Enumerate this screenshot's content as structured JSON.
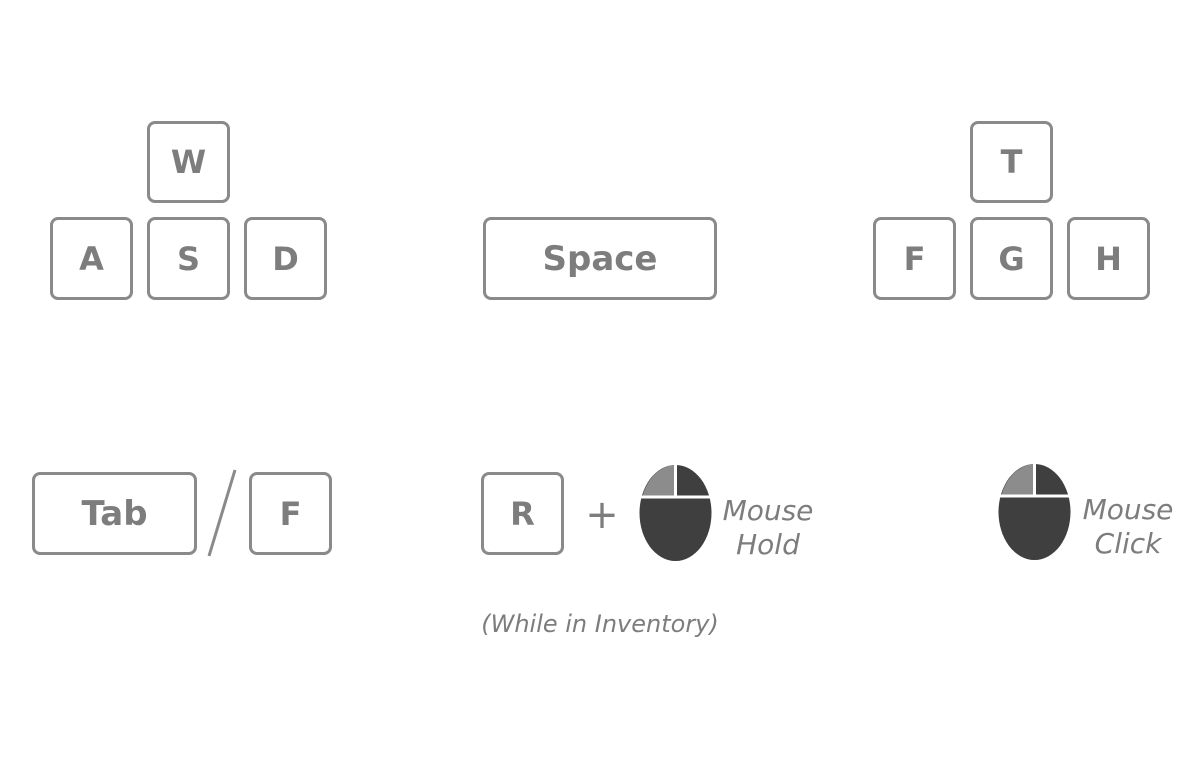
{
  "movement_keys": {
    "up": "W",
    "left": "A",
    "down": "S",
    "right": "D"
  },
  "jump_key": {
    "label": "Space"
  },
  "secondary_keys": {
    "up": "T",
    "left": "F",
    "down": "G",
    "right": "H"
  },
  "inventory_toggle": {
    "key_1": "Tab",
    "separator": "/",
    "key_2": "F"
  },
  "rotate_combo": {
    "key": "R",
    "plus": "+",
    "mouse_icon": "mouse-left-button-icon",
    "action_line_1": "Mouse",
    "action_line_2": "Hold",
    "note": "(While in Inventory)"
  },
  "click_action": {
    "mouse_icon": "mouse-left-button-icon",
    "action_line_1": "Mouse",
    "action_line_2": "Click"
  },
  "colors": {
    "key_border": "#8a8a8a",
    "text": "#7d7d7d",
    "mouse_body": "#3f3f3f",
    "mouse_left_button": "#8c8c8c"
  }
}
